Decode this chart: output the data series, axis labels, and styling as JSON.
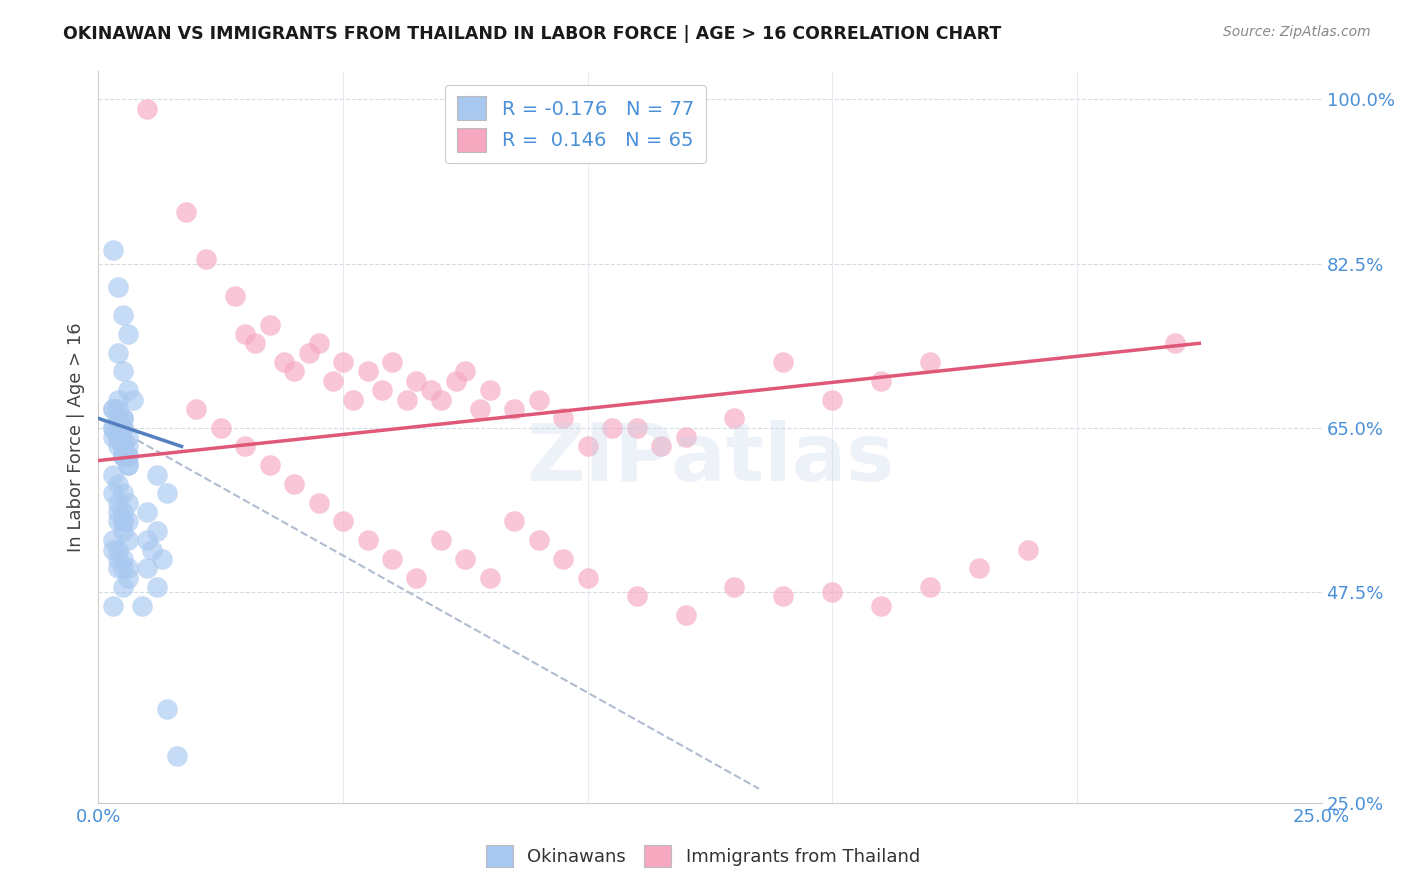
{
  "title": "OKINAWAN VS IMMIGRANTS FROM THAILAND IN LABOR FORCE | AGE > 16 CORRELATION CHART",
  "source": "Source: ZipAtlas.com",
  "ylabel": "In Labor Force | Age > 16",
  "xlim": [
    0.0,
    0.25
  ],
  "ylim": [
    0.25,
    1.03
  ],
  "ytick_positions": [
    0.25,
    0.475,
    0.65,
    0.825,
    1.0
  ],
  "yticklabels": [
    "25.0%",
    "47.5%",
    "65.0%",
    "82.5%",
    "100.0%"
  ],
  "xtick_positions": [
    0.0,
    0.05,
    0.1,
    0.15,
    0.2,
    0.25
  ],
  "xticklabels": [
    "0.0%",
    "",
    "",
    "",
    "",
    "25.0%"
  ],
  "legend1_label": "R = -0.176   N = 77",
  "legend2_label": "R =  0.146   N = 65",
  "watermark": "ZIPatlas",
  "blue_color": "#a8c8f0",
  "blue_line_color": "#5580c0",
  "pink_color": "#f5a8c0",
  "pink_line_color": "#e05878",
  "dash_line_color": "#b0bcd0",
  "okinawan_scatter_x": [
    0.003,
    0.004,
    0.005,
    0.006,
    0.004,
    0.005,
    0.006,
    0.007,
    0.005,
    0.004,
    0.003,
    0.005,
    0.006,
    0.004,
    0.005,
    0.006,
    0.004,
    0.005,
    0.003,
    0.004,
    0.005,
    0.006,
    0.004,
    0.005,
    0.003,
    0.004,
    0.005,
    0.006,
    0.004,
    0.005,
    0.003,
    0.004,
    0.005,
    0.006,
    0.004,
    0.005,
    0.003,
    0.004,
    0.005,
    0.006,
    0.003,
    0.004,
    0.005,
    0.006,
    0.004,
    0.005,
    0.003,
    0.004,
    0.005,
    0.006,
    0.003,
    0.004,
    0.005,
    0.006,
    0.004,
    0.005,
    0.003,
    0.004,
    0.005,
    0.006,
    0.012,
    0.014,
    0.01,
    0.012,
    0.011,
    0.01,
    0.012,
    0.009,
    0.01,
    0.013,
    0.005,
    0.006,
    0.004,
    0.005,
    0.003,
    0.014,
    0.016
  ],
  "okinawan_scatter_y": [
    0.84,
    0.8,
    0.77,
    0.75,
    0.73,
    0.71,
    0.69,
    0.68,
    0.66,
    0.68,
    0.67,
    0.65,
    0.64,
    0.66,
    0.65,
    0.63,
    0.67,
    0.66,
    0.64,
    0.65,
    0.63,
    0.62,
    0.64,
    0.63,
    0.65,
    0.64,
    0.62,
    0.61,
    0.63,
    0.62,
    0.67,
    0.65,
    0.63,
    0.62,
    0.64,
    0.63,
    0.65,
    0.64,
    0.62,
    0.61,
    0.6,
    0.59,
    0.58,
    0.57,
    0.56,
    0.55,
    0.58,
    0.57,
    0.56,
    0.55,
    0.53,
    0.52,
    0.51,
    0.5,
    0.55,
    0.54,
    0.52,
    0.51,
    0.5,
    0.49,
    0.6,
    0.58,
    0.56,
    0.54,
    0.52,
    0.5,
    0.48,
    0.46,
    0.53,
    0.51,
    0.55,
    0.53,
    0.5,
    0.48,
    0.46,
    0.35,
    0.3
  ],
  "thailand_scatter_x": [
    0.01,
    0.018,
    0.022,
    0.028,
    0.03,
    0.032,
    0.035,
    0.038,
    0.04,
    0.043,
    0.045,
    0.048,
    0.05,
    0.052,
    0.055,
    0.058,
    0.06,
    0.063,
    0.065,
    0.068,
    0.07,
    0.073,
    0.075,
    0.078,
    0.08,
    0.085,
    0.09,
    0.095,
    0.1,
    0.105,
    0.11,
    0.115,
    0.12,
    0.13,
    0.14,
    0.15,
    0.16,
    0.17,
    0.22,
    0.02,
    0.025,
    0.03,
    0.035,
    0.04,
    0.045,
    0.05,
    0.055,
    0.06,
    0.065,
    0.07,
    0.075,
    0.08,
    0.085,
    0.09,
    0.095,
    0.1,
    0.11,
    0.12,
    0.13,
    0.14,
    0.15,
    0.16,
    0.17,
    0.18,
    0.19
  ],
  "thailand_scatter_y": [
    0.99,
    0.88,
    0.83,
    0.79,
    0.75,
    0.74,
    0.76,
    0.72,
    0.71,
    0.73,
    0.74,
    0.7,
    0.72,
    0.68,
    0.71,
    0.69,
    0.72,
    0.68,
    0.7,
    0.69,
    0.68,
    0.7,
    0.71,
    0.67,
    0.69,
    0.67,
    0.68,
    0.66,
    0.63,
    0.65,
    0.65,
    0.63,
    0.64,
    0.66,
    0.72,
    0.68,
    0.7,
    0.72,
    0.74,
    0.67,
    0.65,
    0.63,
    0.61,
    0.59,
    0.57,
    0.55,
    0.53,
    0.51,
    0.49,
    0.53,
    0.51,
    0.49,
    0.55,
    0.53,
    0.51,
    0.49,
    0.47,
    0.45,
    0.48,
    0.47,
    0.475,
    0.46,
    0.48,
    0.5,
    0.52
  ],
  "blue_line_x": [
    0.0,
    0.017
  ],
  "blue_line_y": [
    0.66,
    0.63
  ],
  "pink_line_x": [
    0.0,
    0.225
  ],
  "pink_line_y": [
    0.615,
    0.74
  ],
  "dash_line_x": [
    0.0,
    0.135
  ],
  "dash_line_y": [
    0.66,
    0.265
  ]
}
